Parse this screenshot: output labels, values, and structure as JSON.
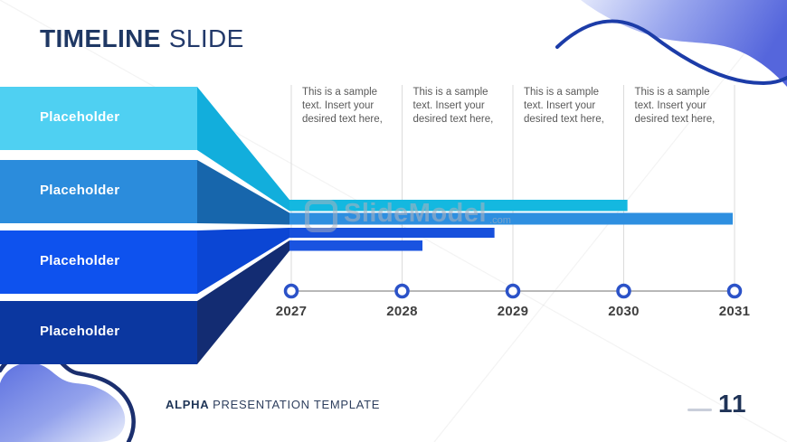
{
  "slide": {
    "title": {
      "primary": "TIMELINE",
      "secondary": "SLIDE"
    },
    "funnel": {
      "items": [
        {
          "label": "Placeholder",
          "color": "#4FD0F2",
          "shade": "#12AEDC"
        },
        {
          "label": "Placeholder",
          "color": "#2B8CDC",
          "shade": "#1766AC"
        },
        {
          "label": "Placeholder",
          "color": "#0E52EE",
          "shade": "#0B46D4"
        },
        {
          "label": "Placeholder",
          "color": "#0B37A0",
          "shade": "#132C72"
        }
      ]
    },
    "timeline": {
      "years": [
        "2027",
        "2028",
        "2029",
        "2030",
        "2031"
      ],
      "notes": [
        "This is a sample text. Insert your desired text here,",
        "This is a sample text. Insert your desired text here,",
        "This is a sample text. Insert your desired text here,",
        "This is a sample text. Insert your desired text here,"
      ],
      "marker_color": "#2B52C8",
      "axis_color": "#A0A0A0",
      "gridline_color": "#DBDBDB"
    },
    "watermark": {
      "brand": "SlideModel",
      "suffix": ".com"
    },
    "footer": {
      "brand": "ALPHA",
      "rest": "PRESENTATION TEMPLATE",
      "page": "11"
    }
  },
  "chart_data": {
    "type": "bar",
    "variant": "gantt-timeline",
    "title": "Timeline Slide",
    "x_axis": {
      "labels": [
        "2027",
        "2028",
        "2029",
        "2030",
        "2031"
      ],
      "range": [
        2027,
        2031
      ]
    },
    "series": [
      {
        "name": "Placeholder",
        "row": 1,
        "start": 2027,
        "end": 2030.05,
        "color": "#14B8E0"
      },
      {
        "name": "Placeholder",
        "row": 2,
        "start": 2027,
        "end": 2031.0,
        "color": "#2E8FE0"
      },
      {
        "name": "Placeholder",
        "row": 3,
        "start": 2027,
        "end": 2028.85,
        "color": "#1750DC"
      },
      {
        "name": "Placeholder",
        "row": 4,
        "start": 2027,
        "end": 2028.2,
        "color": "#1953E0"
      }
    ],
    "legend": false,
    "grid": "vertical"
  }
}
